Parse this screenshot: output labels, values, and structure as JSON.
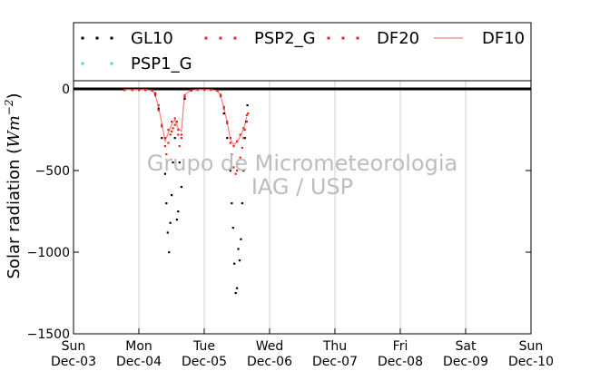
{
  "chart_data": {
    "type": "scatter",
    "ylabel": "Solar radiation (Wm^-2)",
    "ylabel_text": "Solar radiation (",
    "ylabel_unit": "Wm",
    "ylabel_exp": "−2",
    "ylabel_close": ")",
    "ylim": [
      -1500,
      50
    ],
    "xlim": [
      0,
      7
    ],
    "xgrid": true,
    "legend_position": "top",
    "y_ticks": [
      {
        "value": 0,
        "label": "0"
      },
      {
        "value": -500,
        "label": "−500"
      },
      {
        "value": -1000,
        "label": "−1000"
      },
      {
        "value": -1500,
        "label": "−1500"
      }
    ],
    "x_ticks": [
      {
        "value": 0,
        "day": "Sun",
        "date": "Dec-03"
      },
      {
        "value": 1,
        "day": "Mon",
        "date": "Dec-04"
      },
      {
        "value": 2,
        "day": "Tue",
        "date": "Dec-05"
      },
      {
        "value": 3,
        "day": "Wed",
        "date": "Dec-06"
      },
      {
        "value": 4,
        "day": "Thu",
        "date": "Dec-07"
      },
      {
        "value": 5,
        "day": "Fri",
        "date": "Dec-08"
      },
      {
        "value": 6,
        "day": "Sat",
        "date": "Dec-09"
      },
      {
        "value": 7,
        "day": "Sun",
        "date": "Dec-10"
      }
    ],
    "series": [
      {
        "name": "GL10",
        "color": "#000000",
        "style": "dotted",
        "x": [
          0.78,
          0.9,
          1.0,
          1.1,
          1.2,
          1.25,
          1.3,
          1.35,
          1.4,
          1.42,
          1.44,
          1.46,
          1.48,
          1.5,
          1.52,
          1.55,
          1.58,
          1.6,
          1.62,
          1.65,
          1.7,
          1.8,
          1.9,
          2.0,
          2.1,
          2.2,
          2.25,
          2.3,
          2.35,
          2.4,
          2.42,
          2.44,
          2.46,
          2.48,
          2.5,
          2.52,
          2.54,
          2.56,
          2.58,
          2.6,
          2.62,
          2.64,
          2.66
        ],
        "y": [
          -5,
          -5,
          -5,
          -5,
          -8,
          -30,
          -120,
          -300,
          -520,
          -700,
          -880,
          -1000,
          -820,
          -650,
          -450,
          -300,
          -800,
          -750,
          -450,
          -600,
          -60,
          -10,
          -5,
          -5,
          -5,
          -10,
          -40,
          -150,
          -300,
          -500,
          -700,
          -850,
          -1070,
          -1250,
          -1220,
          -980,
          -1050,
          -920,
          -700,
          -500,
          -300,
          -200,
          -100
        ]
      },
      {
        "name": "PSP2_G",
        "color": "#e8231f",
        "style": "dotted",
        "x": [
          0.78,
          0.9,
          1.0,
          1.1,
          1.2,
          1.25,
          1.3,
          1.35,
          1.4,
          1.42,
          1.45,
          1.48,
          1.5,
          1.52,
          1.55,
          1.58,
          1.6,
          1.62,
          1.65,
          1.7,
          1.8,
          1.9,
          2.0,
          2.1,
          2.2,
          2.25,
          2.3,
          2.35,
          2.4,
          2.42,
          2.45,
          2.48,
          2.5,
          2.52,
          2.55,
          2.58,
          2.6,
          2.62,
          2.65,
          2.67
        ],
        "y": [
          -5,
          -5,
          -5,
          -5,
          -8,
          -25,
          -100,
          -220,
          -350,
          -400,
          -330,
          -280,
          -260,
          -240,
          -220,
          -200,
          -280,
          -350,
          -300,
          -50,
          -10,
          -5,
          -5,
          -5,
          -10,
          -35,
          -110,
          -200,
          -330,
          -400,
          -480,
          -520,
          -500,
          -460,
          -420,
          -360,
          -300,
          -250,
          -200,
          -150
        ]
      },
      {
        "name": "DF20",
        "color": "#e8231f",
        "style": "dotted",
        "x": [
          0.78,
          0.9,
          1.0,
          1.1,
          1.2,
          1.25,
          1.3,
          1.35,
          1.4,
          1.45,
          1.5,
          1.55,
          1.6,
          1.65,
          1.7,
          1.8,
          1.9,
          2.0,
          2.1,
          2.2,
          2.25,
          2.3,
          2.35,
          2.4,
          2.45,
          2.5,
          2.55,
          2.6,
          2.65
        ],
        "y": [
          -6,
          -6,
          -6,
          -6,
          -10,
          -40,
          -130,
          -230,
          -300,
          -250,
          -200,
          -180,
          -250,
          -280,
          -40,
          -8,
          -5,
          -5,
          -5,
          -12,
          -45,
          -120,
          -210,
          -300,
          -350,
          -320,
          -280,
          -240,
          -160
        ]
      },
      {
        "name": "DF10",
        "color": "#f08080",
        "style": "line",
        "x": [
          0.78,
          0.9,
          1.0,
          1.1,
          1.2,
          1.25,
          1.3,
          1.35,
          1.4,
          1.45,
          1.5,
          1.55,
          1.6,
          1.65,
          1.7,
          1.8,
          1.9,
          2.0,
          2.1,
          2.2,
          2.25,
          2.3,
          2.35,
          2.4,
          2.45,
          2.5,
          2.55,
          2.6,
          2.65
        ],
        "y": [
          -5,
          -5,
          -5,
          -5,
          -9,
          -35,
          -110,
          -210,
          -320,
          -270,
          -220,
          -190,
          -240,
          -260,
          -35,
          -8,
          -5,
          -5,
          -5,
          -11,
          -40,
          -115,
          -200,
          -310,
          -340,
          -330,
          -290,
          -250,
          -170
        ]
      },
      {
        "name": "PSP1_G",
        "color": "#40e0d0",
        "style": "dotted",
        "x": [],
        "y": []
      }
    ],
    "watermark_lines": [
      "Grupo de Micrometeorologia",
      "IAG / USP"
    ]
  }
}
